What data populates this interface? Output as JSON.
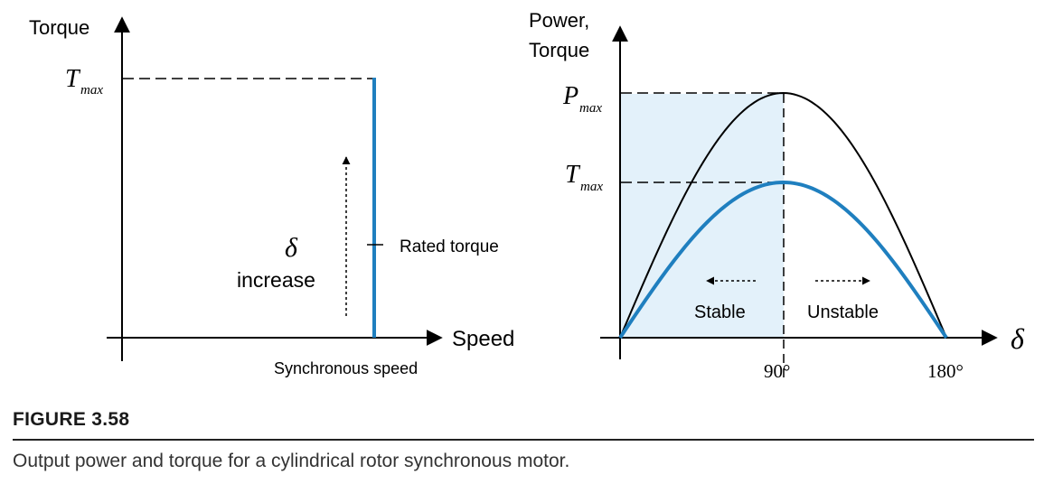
{
  "left_chart": {
    "y_axis_label": "Torque",
    "x_axis_label": "Speed",
    "t_max_symbol": "T",
    "t_max_subscript": "max",
    "delta_symbol": "δ",
    "increase_label": "increase",
    "rated_torque_label": "Rated torque",
    "sync_speed_label": "Synchronous speed"
  },
  "right_chart": {
    "y_axis_label_line1": "Power,",
    "y_axis_label_line2": "Torque",
    "p_max_symbol": "P",
    "p_max_subscript": "max",
    "t_max_symbol": "T",
    "t_max_subscript": "max",
    "x_axis_symbol": "δ",
    "tick_90": "90°",
    "tick_180": "180°",
    "stable_label": "Stable",
    "unstable_label": "Unstable"
  },
  "caption": {
    "label": "FIGURE 3.58",
    "text": "Output power and torque for a cylindrical rotor synchronous motor."
  },
  "colors": {
    "curve_blue": "#1f7fbf",
    "stable_fill": "#e3f1fa",
    "axis": "#000000"
  }
}
